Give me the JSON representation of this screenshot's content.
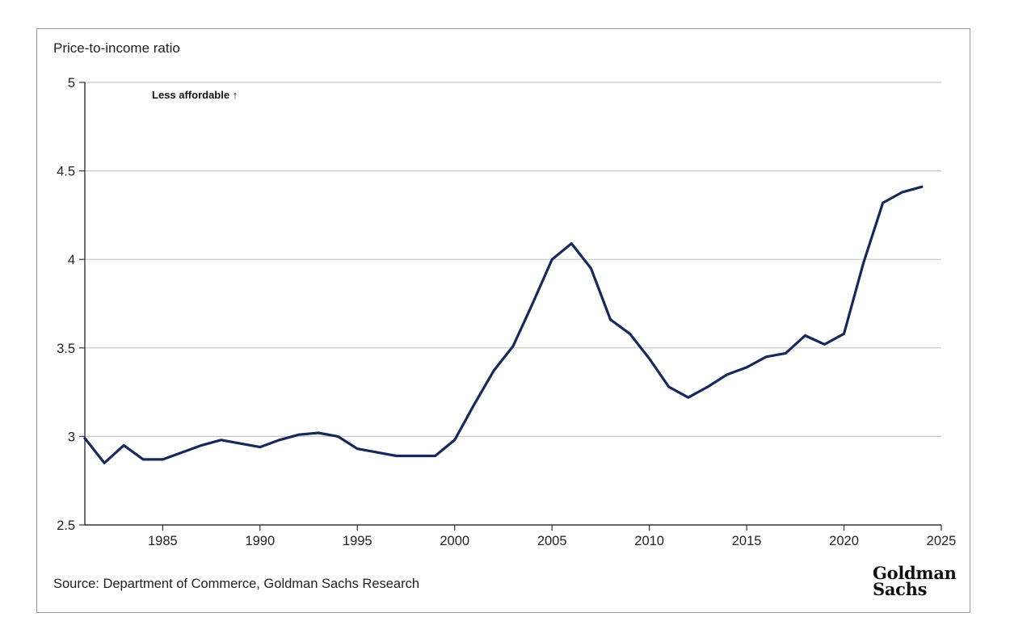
{
  "source_text": "Source: Department of Commerce, Goldman Sachs Research",
  "logo": {
    "line1": "Goldman",
    "line2": "Sachs"
  },
  "chart_data": {
    "type": "line",
    "title": "",
    "xlabel": "",
    "ylabel": "Price-to-income ratio",
    "annotation": "Less affordable ↑",
    "xlim": [
      1981,
      2025
    ],
    "ylim": [
      2.5,
      5
    ],
    "x_ticks": [
      1985,
      1990,
      1995,
      2000,
      2005,
      2010,
      2015,
      2020,
      2025
    ],
    "y_ticks": [
      2.5,
      3,
      3.5,
      4,
      4.5,
      5
    ],
    "y_tick_labels": [
      "2.5",
      "3",
      "3.5",
      "4",
      "4.5",
      "5"
    ],
    "grid": "horizontal",
    "line_color": "#16295a",
    "series": [
      {
        "x": [
          1981,
          1982,
          1983,
          1984,
          1985,
          1986,
          1987,
          1988,
          1989,
          1990,
          1991,
          1992,
          1993,
          1994,
          1995,
          1996,
          1997,
          1998,
          1999,
          2000,
          2001,
          2002,
          2003,
          2004,
          2005,
          2006,
          2007,
          2008,
          2009,
          2010,
          2011,
          2012,
          2013,
          2014,
          2015,
          2016,
          2017,
          2018,
          2019,
          2020,
          2021,
          2022,
          2023,
          2024
        ],
        "values": [
          2.99,
          2.85,
          2.95,
          2.87,
          2.87,
          2.91,
          2.95,
          2.98,
          2.96,
          2.94,
          2.98,
          3.01,
          3.02,
          3.0,
          2.93,
          2.91,
          2.89,
          2.89,
          2.89,
          2.98,
          3.18,
          3.37,
          3.51,
          3.75,
          4.0,
          4.09,
          3.95,
          3.66,
          3.58,
          3.44,
          3.28,
          3.22,
          3.28,
          3.35,
          3.39,
          3.45,
          3.47,
          3.57,
          3.52,
          3.58,
          3.98,
          4.32,
          4.38,
          4.41
        ]
      }
    ]
  }
}
